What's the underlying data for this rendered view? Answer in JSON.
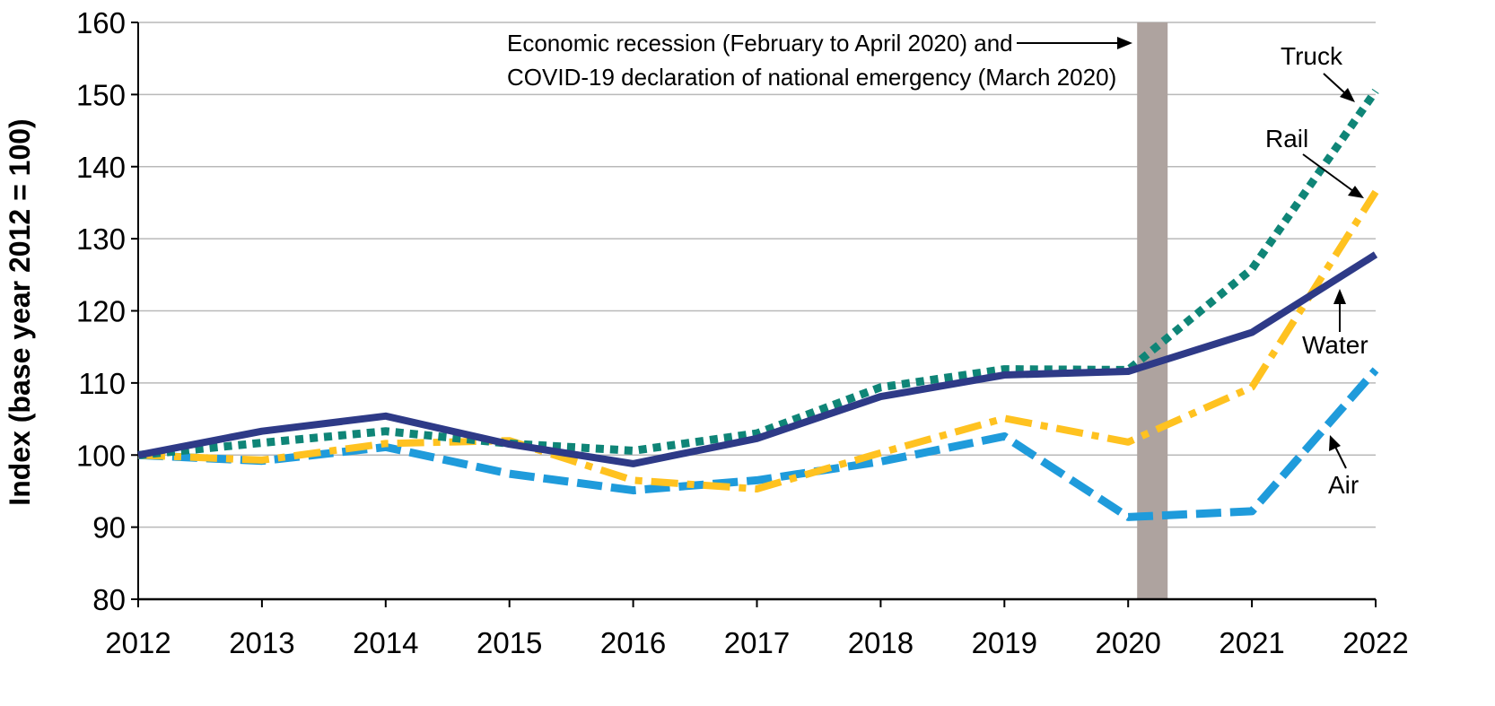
{
  "chart_data": {
    "type": "line",
    "title": "",
    "xlabel": "",
    "ylabel": "Index (base year 2012 = 100)",
    "x": [
      "2012",
      "2013",
      "2014",
      "2015",
      "2016",
      "2017",
      "2018",
      "2019",
      "2020",
      "2021",
      "2022"
    ],
    "y_ticks": [
      "80",
      "90",
      "100",
      "110",
      "120",
      "130",
      "140",
      "150",
      "160"
    ],
    "ylim": [
      80,
      160
    ],
    "grid": "horizontal",
    "legend": "none (series labeled directly with arrows)",
    "series": [
      {
        "name": "Water",
        "style": "solid",
        "color": "#2E3A87",
        "values": [
          100,
          103.3,
          105.4,
          101.5,
          98.8,
          102.3,
          108.1,
          111.1,
          111.6,
          117.0,
          127.8
        ]
      },
      {
        "name": "Truck",
        "style": "dotted",
        "color": "#0F8577",
        "values": [
          100,
          101.7,
          103.3,
          101.6,
          100.6,
          103.0,
          109.4,
          111.9,
          111.8,
          125.8,
          150.5
        ]
      },
      {
        "name": "Rail",
        "style": "dash-dot",
        "color": "#FFC220",
        "values": [
          100,
          99.3,
          101.6,
          102.0,
          96.5,
          95.3,
          100.3,
          105.1,
          101.8,
          109.4,
          136.5
        ]
      },
      {
        "name": "Air",
        "style": "dashed",
        "color": "#1F9BDB",
        "values": [
          100,
          99.2,
          101.1,
          97.4,
          95.1,
          96.5,
          99.1,
          102.6,
          91.4,
          92.2,
          111.8
        ]
      }
    ],
    "recession_band": {
      "color": "#AEA39F"
    },
    "annotation": {
      "line1": "Economic recession (February to April 2020) and",
      "line2": "COVID-19 declaration of national emergency (March 2020)"
    }
  }
}
